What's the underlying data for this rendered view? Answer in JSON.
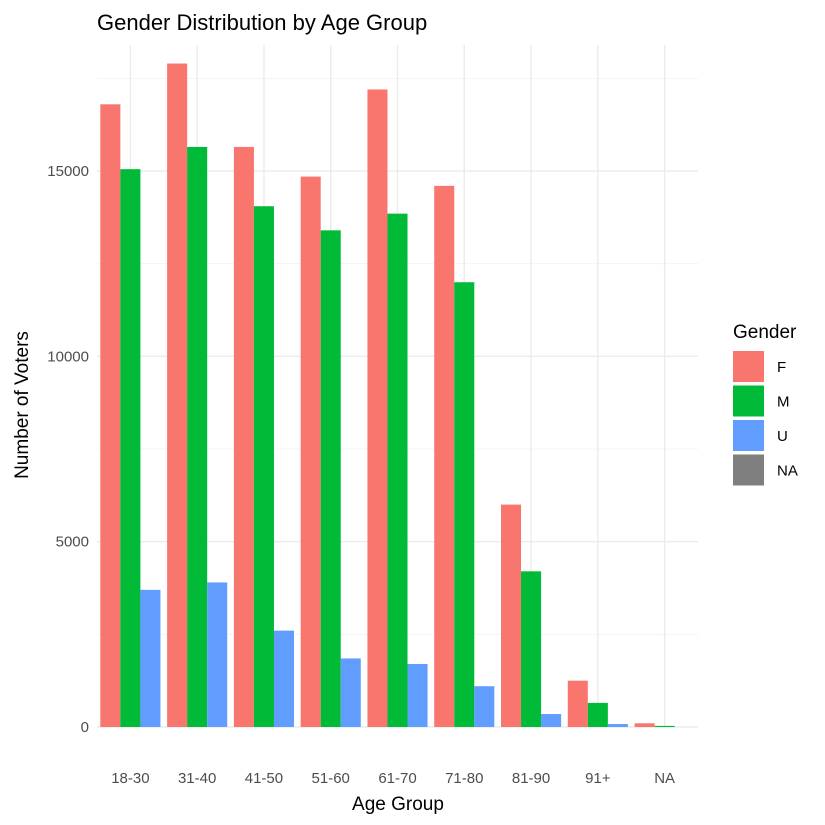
{
  "chart_data": {
    "type": "bar",
    "title": "Gender Distribution by Age Group",
    "xlabel": "Age Group",
    "ylabel": "Number of Voters",
    "categories": [
      "18-30",
      "31-40",
      "41-50",
      "51-60",
      "61-70",
      "71-80",
      "81-90",
      "91+",
      "NA"
    ],
    "ylim": [
      0,
      18400
    ],
    "yticks": [
      0,
      5000,
      10000,
      15000
    ],
    "ytick_labels": [
      "0",
      "5000",
      "10000",
      "15000"
    ],
    "grid": true,
    "legend": {
      "title": "Gender",
      "position": "right"
    },
    "series": [
      {
        "name": "F",
        "color": "#F8766D",
        "values": [
          16800,
          17900,
          15650,
          14850,
          17200,
          14600,
          6000,
          1250,
          100
        ]
      },
      {
        "name": "M",
        "color": "#00BA38",
        "values": [
          15050,
          15650,
          14050,
          13400,
          13850,
          12000,
          4200,
          650,
          30
        ]
      },
      {
        "name": "U",
        "color": "#619CFF",
        "values": [
          3700,
          3900,
          2600,
          1850,
          1700,
          1100,
          350,
          80,
          null
        ]
      },
      {
        "name": "NA",
        "color": "#7F7F7F",
        "values": [
          null,
          null,
          null,
          null,
          null,
          null,
          null,
          null,
          null
        ]
      }
    ]
  }
}
